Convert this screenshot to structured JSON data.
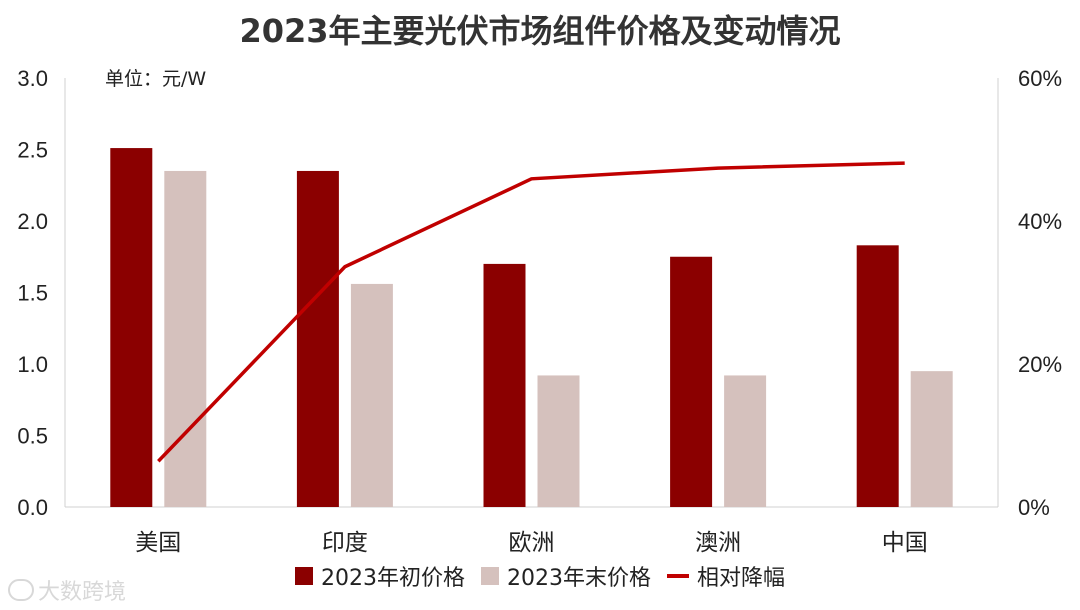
{
  "chart_data": {
    "type": "bar",
    "title": "2023年主要光伏市场组件价格及变动情况",
    "unit_label": "单位：元/W",
    "categories": [
      "美国",
      "印度",
      "欧洲",
      "澳洲",
      "中国"
    ],
    "series": [
      {
        "name": "2023年初价格",
        "type": "bar",
        "axis": "left",
        "color": "#8B0000",
        "values": [
          2.51,
          2.35,
          1.7,
          1.75,
          1.83
        ]
      },
      {
        "name": "2023年末价格",
        "type": "bar",
        "axis": "left",
        "color": "#D5C1BD",
        "values": [
          2.35,
          1.56,
          0.92,
          0.92,
          0.95
        ]
      },
      {
        "name": "相对降幅",
        "type": "line",
        "axis": "right",
        "color": "#C00000",
        "values": [
          0.064,
          0.336,
          0.459,
          0.474,
          0.481
        ]
      }
    ],
    "y_left": {
      "min": 0,
      "max": 3.0,
      "ticks": [
        "0.0",
        "0.5",
        "1.0",
        "1.5",
        "2.0",
        "2.5",
        "3.0"
      ]
    },
    "y_right": {
      "min": 0,
      "max": 0.6,
      "ticks": [
        "0%",
        "20%",
        "40%",
        "60%"
      ]
    },
    "grid": false,
    "legend_position": "bottom"
  },
  "watermark": "大数跨境"
}
